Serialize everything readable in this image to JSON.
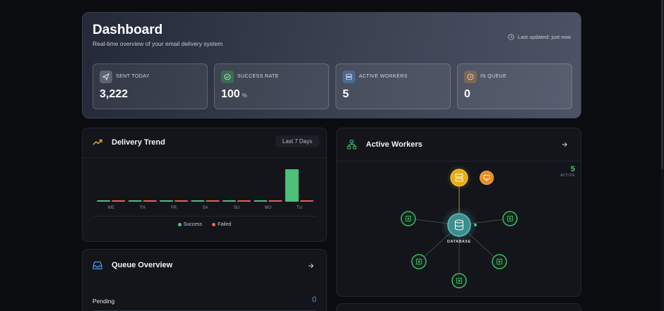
{
  "header": {
    "title": "Dashboard",
    "subtitle": "Real-time overview of your email delivery system",
    "last_updated": "Last updated: just now"
  },
  "stats": [
    {
      "label": "SENT TODAY",
      "value": "3,222",
      "unit": "",
      "icon": "send-icon",
      "color": "#8e95a3"
    },
    {
      "label": "SUCCESS RATE",
      "value": "100",
      "unit": "%",
      "icon": "check-circle-icon",
      "color": "#4f9b6b"
    },
    {
      "label": "ACTIVE WORKERS",
      "value": "5",
      "unit": "",
      "icon": "server-icon",
      "color": "#5a7fa8"
    },
    {
      "label": "IN QUEUE",
      "value": "0",
      "unit": "",
      "icon": "clock-icon",
      "color": "#a0785a"
    }
  ],
  "delivery_trend": {
    "title": "Delivery Trend",
    "range_label": "Last 7 Days",
    "legend": {
      "success": "Success",
      "failed": "Failed"
    },
    "colors": {
      "success": "#4ec07a",
      "failed": "#e8624f",
      "accent": "#f5a524"
    }
  },
  "chart_data": {
    "type": "bar",
    "categories": [
      "WE",
      "TH",
      "FR",
      "SA",
      "SU",
      "MO",
      "TU"
    ],
    "series": [
      {
        "name": "Success",
        "values": [
          0,
          0,
          0,
          0,
          0,
          0,
          3222
        ]
      },
      {
        "name": "Failed",
        "values": [
          0,
          0,
          0,
          0,
          0,
          0,
          0
        ]
      }
    ],
    "ylim": [
      0,
      3222
    ],
    "legend": "bottom-center",
    "grid": false
  },
  "queue": {
    "title": "Queue Overview",
    "pending_label": "Pending",
    "pending_value": "0",
    "pending_fraction": 0
  },
  "workers": {
    "title": "Active Workers",
    "count": "5",
    "count_label": "ACTIVE",
    "center_label": "DATABASE",
    "colors": {
      "node": "#3fbe6a",
      "hub": "#f2b705",
      "accent": "#f08a16",
      "core": "#3b8f8c"
    }
  }
}
